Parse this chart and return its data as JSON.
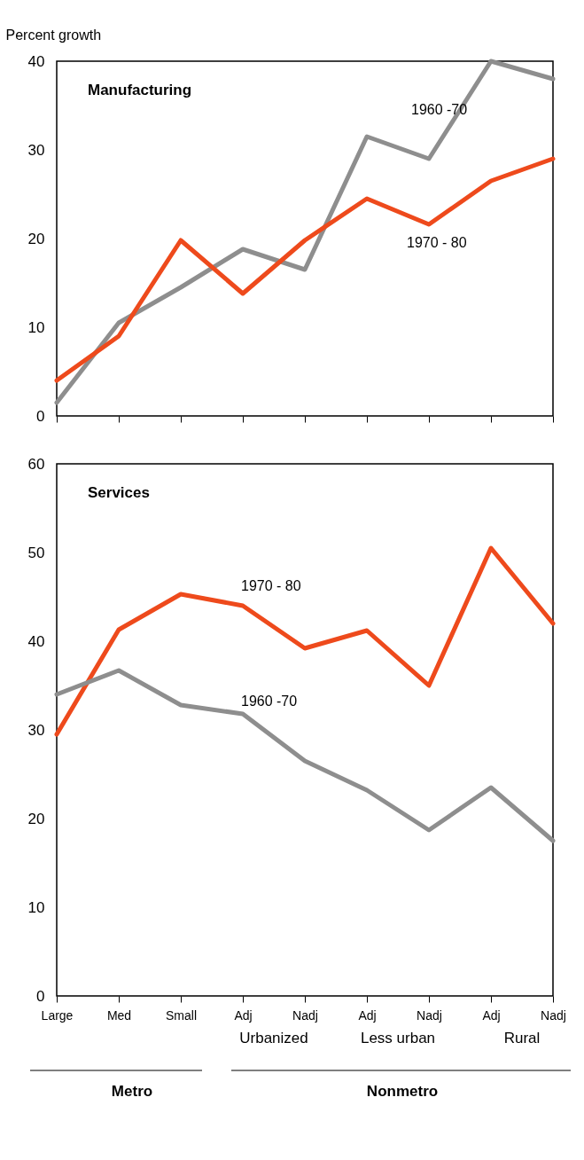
{
  "chart_data": [
    {
      "type": "line",
      "title": "Manufacturing",
      "ylabel": "Percent growth",
      "categories": [
        null,
        null,
        null,
        null,
        null,
        null,
        null,
        null,
        null
      ],
      "ylim": [
        0,
        40
      ],
      "yticks": [
        0,
        10,
        20,
        30,
        40
      ],
      "tick_labels": "y",
      "legend": false,
      "grid": false,
      "series": [
        {
          "name": "1960 -70",
          "color": "#8e8e8e",
          "values": [
            1.5,
            10.5,
            14.5,
            18.8,
            16.5,
            31.5,
            29,
            40,
            38
          ]
        },
        {
          "name": "1970 - 80",
          "color": "#ee4a1c",
          "values": [
            4,
            9,
            19.8,
            13.8,
            19.8,
            24.5,
            21.6,
            26.5,
            29
          ]
        }
      ]
    },
    {
      "type": "line",
      "title": "Services",
      "categories": [
        "Large",
        "Med",
        "Small",
        "Adj",
        "Nadj",
        "Adj",
        "Nadj",
        "Adj",
        "Nadj"
      ],
      "ylim": [
        0,
        60
      ],
      "yticks": [
        0,
        10,
        20,
        30,
        40,
        50,
        60
      ],
      "legend": false,
      "grid": false,
      "annotations": [
        "Urbanized",
        "Less urban",
        "Rural",
        "Metro",
        "Nonmetro"
      ],
      "series": [
        {
          "name": "1970 - 80",
          "color": "#ee4a1c",
          "values": [
            29.5,
            41.3,
            45.3,
            44,
            39.2,
            41.2,
            35,
            50.5,
            42
          ]
        },
        {
          "name": "1960 -70",
          "color": "#8e8e8e",
          "values": [
            34,
            36.7,
            32.8,
            31.8,
            26.5,
            23.2,
            18.7,
            23.5,
            17.5
          ]
        }
      ]
    }
  ]
}
